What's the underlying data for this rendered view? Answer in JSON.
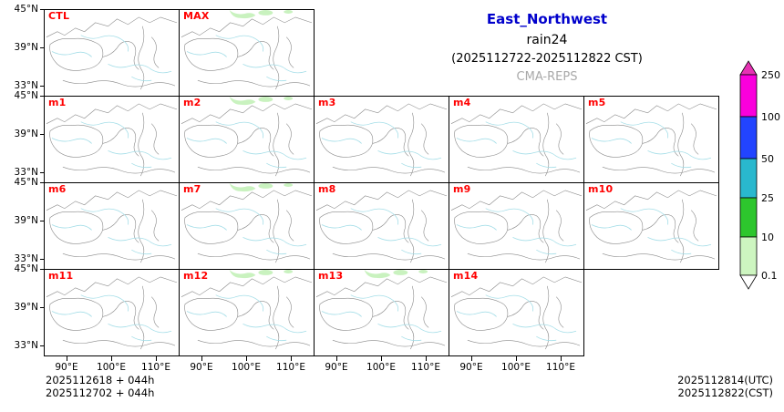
{
  "title": {
    "region": "East_Northwest",
    "variable": "rain24",
    "valid_period": "(2025112722-2025112822 CST)",
    "system": "CMA-REPS"
  },
  "panels": [
    {
      "label": "CTL",
      "precip": false
    },
    {
      "label": "MAX",
      "precip": true
    },
    {
      "label": "m1",
      "precip": false
    },
    {
      "label": "m2",
      "precip": true
    },
    {
      "label": "m3",
      "precip": false
    },
    {
      "label": "m4",
      "precip": false
    },
    {
      "label": "m5",
      "precip": false
    },
    {
      "label": "m6",
      "precip": false
    },
    {
      "label": "m7",
      "precip": true
    },
    {
      "label": "m8",
      "precip": false
    },
    {
      "label": "m9",
      "precip": false
    },
    {
      "label": "m10",
      "precip": false
    },
    {
      "label": "m11",
      "precip": false
    },
    {
      "label": "m12",
      "precip": true
    },
    {
      "label": "m13",
      "precip": true
    },
    {
      "label": "m14",
      "precip": false
    }
  ],
  "axes": {
    "y_tick_labels": [
      "45°N",
      "39°N",
      "33°N"
    ],
    "x_tick_labels": [
      "90°E",
      "100°E",
      "110°E"
    ]
  },
  "colorbar": {
    "tick_labels": [
      "250",
      "100",
      "50",
      "25",
      "10",
      "0.1"
    ],
    "segment_colors_top_to_bottom": [
      "#e632b4",
      "#fa00dc",
      "#2244ff",
      "#29b8ce",
      "#2dc62d",
      "#cdf5c0",
      "#ffffff"
    ]
  },
  "footer": {
    "left_line1": "2025112618  +  044h",
    "left_line2": "2025112702  +  044h",
    "right_line1": "2025112814(UTC)",
    "right_line2": "2025112822(CST)"
  },
  "colors": {
    "panel_label": "#ff0000",
    "title_region": "#0000cc",
    "system_gray": "#a9a9a9",
    "boundary": "#8a8a8a",
    "river": "#a5dee8",
    "precip_light": "#c9f2bf"
  }
}
